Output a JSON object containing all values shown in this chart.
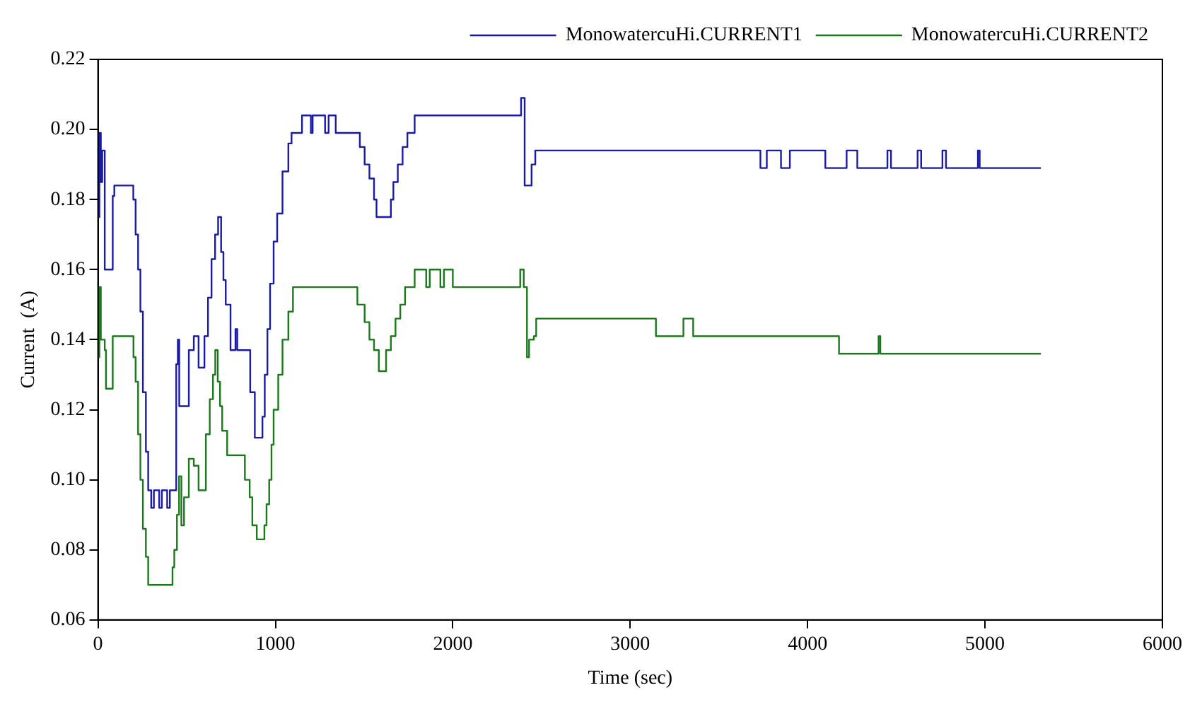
{
  "chart_data": {
    "type": "step",
    "xlabel": "Time (sec)",
    "ylabel": "Current  (A)",
    "xlim": [
      0,
      6000
    ],
    "xticks": [
      0,
      1000,
      2000,
      3000,
      4000,
      5000,
      6000
    ],
    "ylim": [
      0.06,
      0.22
    ],
    "yticks": [
      {
        "value": 0.06,
        "label": "0.06"
      },
      {
        "value": 0.08,
        "label": "0.08"
      },
      {
        "value": 0.1,
        "label": "0.10"
      },
      {
        "value": 0.12,
        "label": "0.12"
      },
      {
        "value": 0.14,
        "label": "0.14"
      },
      {
        "value": 0.16,
        "label": "0.16"
      },
      {
        "value": 0.18,
        "label": "0.18"
      },
      {
        "value": 0.2,
        "label": "0.20"
      },
      {
        "value": 0.22,
        "label": "0.22"
      }
    ],
    "grid": false,
    "legend": "top right",
    "line_style": "solid",
    "marker": "none",
    "series": [
      {
        "name": "MonowatercuHi.CURRENT1",
        "color": "#1a1aa8",
        "x": [
          0,
          8,
          16,
          24,
          38,
          83,
          92,
          185,
          199,
          212,
          226,
          239,
          253,
          270,
          283,
          300,
          315,
          345,
          360,
          390,
          405,
          441,
          450,
          458,
          512,
          540,
          567,
          600,
          620,
          640,
          660,
          677,
          694,
          707,
          720,
          747,
          775,
          785,
          858,
          884,
          927,
          940,
          955,
          970,
          990,
          1010,
          1040,
          1073,
          1091,
          1150,
          1200,
          1210,
          1280,
          1300,
          1340,
          1476,
          1503,
          1530,
          1556,
          1570,
          1651,
          1665,
          1690,
          1717,
          1744,
          1785,
          2385,
          2405,
          2444,
          2465,
          3734,
          3770,
          3850,
          3900,
          4100,
          4220,
          4280,
          4450,
          4470,
          4620,
          4640,
          4760,
          4780,
          4960,
          4970,
          5315
        ],
        "values": [
          0.175,
          0.199,
          0.185,
          0.194,
          0.16,
          0.181,
          0.184,
          0.184,
          0.18,
          0.17,
          0.16,
          0.148,
          0.125,
          0.108,
          0.097,
          0.092,
          0.097,
          0.092,
          0.097,
          0.092,
          0.097,
          0.133,
          0.14,
          0.121,
          0.137,
          0.141,
          0.132,
          0.141,
          0.152,
          0.163,
          0.17,
          0.175,
          0.165,
          0.157,
          0.15,
          0.137,
          0.143,
          0.137,
          0.125,
          0.112,
          0.118,
          0.13,
          0.143,
          0.156,
          0.168,
          0.176,
          0.188,
          0.196,
          0.199,
          0.204,
          0.199,
          0.204,
          0.199,
          0.204,
          0.199,
          0.195,
          0.19,
          0.186,
          0.18,
          0.175,
          0.18,
          0.185,
          0.19,
          0.195,
          0.199,
          0.204,
          0.209,
          0.184,
          0.19,
          0.194,
          0.189,
          0.194,
          0.189,
          0.194,
          0.189,
          0.194,
          0.189,
          0.194,
          0.189,
          0.194,
          0.189,
          0.194,
          0.189,
          0.194,
          0.189,
          0.189
        ]
      },
      {
        "name": "MonowatercuHi.CURRENT2",
        "color": "#1a7a1a",
        "x": [
          0,
          8,
          16,
          38,
          45,
          72,
          83,
          185,
          200,
          212,
          226,
          239,
          253,
          270,
          283,
          420,
          430,
          445,
          457,
          470,
          485,
          512,
          540,
          567,
          608,
          630,
          648,
          661,
          675,
          688,
          700,
          728,
          828,
          855,
          870,
          895,
          938,
          950,
          965,
          978,
          990,
          1016,
          1040,
          1073,
          1099,
          1462,
          1503,
          1530,
          1556,
          1583,
          1624,
          1651,
          1677,
          1704,
          1731,
          1785,
          1850,
          1870,
          1930,
          1950,
          2000,
          2380,
          2400,
          2418,
          2430,
          2457,
          2470,
          3145,
          3300,
          3355,
          4177,
          4400,
          4410,
          5315
        ],
        "values": [
          0.135,
          0.155,
          0.14,
          0.137,
          0.126,
          0.126,
          0.141,
          0.141,
          0.135,
          0.128,
          0.113,
          0.1,
          0.086,
          0.078,
          0.07,
          0.075,
          0.08,
          0.09,
          0.101,
          0.087,
          0.095,
          0.106,
          0.104,
          0.097,
          0.113,
          0.123,
          0.13,
          0.137,
          0.128,
          0.121,
          0.114,
          0.107,
          0.1,
          0.095,
          0.087,
          0.083,
          0.087,
          0.093,
          0.1,
          0.11,
          0.12,
          0.13,
          0.14,
          0.148,
          0.155,
          0.15,
          0.145,
          0.14,
          0.137,
          0.131,
          0.137,
          0.141,
          0.146,
          0.15,
          0.155,
          0.16,
          0.155,
          0.16,
          0.155,
          0.16,
          0.155,
          0.16,
          0.155,
          0.135,
          0.14,
          0.141,
          0.146,
          0.141,
          0.146,
          0.141,
          0.136,
          0.141,
          0.136,
          0.136
        ]
      }
    ]
  }
}
